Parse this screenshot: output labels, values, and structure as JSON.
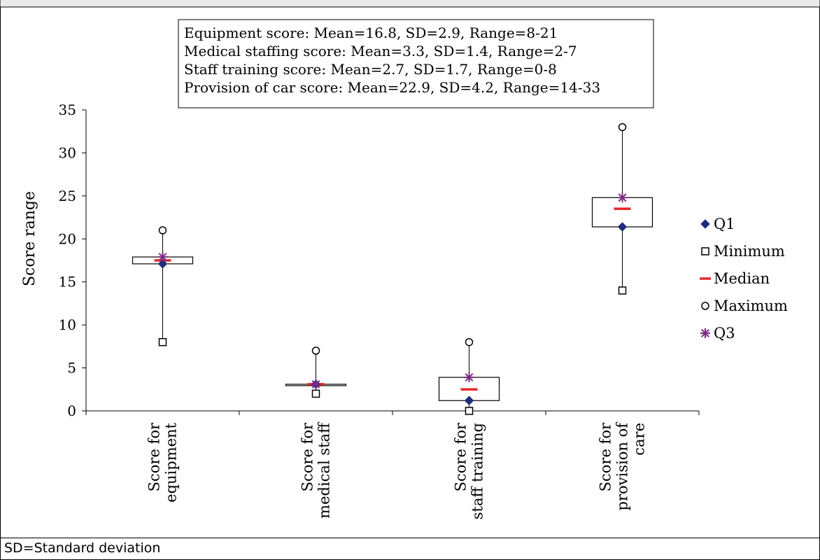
{
  "chart_data": {
    "type": "boxplot",
    "title": "",
    "xlabel": "",
    "ylabel": "Score range",
    "ylim": [
      0,
      35
    ],
    "yticks": [
      0,
      5,
      10,
      15,
      20,
      25,
      30,
      35
    ],
    "grid": false,
    "legend_position": "right",
    "categories": [
      [
        "Score for",
        "equipment"
      ],
      [
        "Score for",
        "medical staff"
      ],
      [
        "Score for",
        "staff training"
      ],
      [
        "Score for",
        "provision of",
        "care"
      ]
    ],
    "series": [
      {
        "name": "Q1",
        "marker": "diamond",
        "color": "#1f2d7a",
        "values": [
          17.1,
          3.1,
          1.2,
          21.4
        ]
      },
      {
        "name": "Minimum",
        "marker": "square-open",
        "color": "#000000",
        "values": [
          8,
          2,
          0,
          14
        ]
      },
      {
        "name": "Median",
        "marker": "dash",
        "color": "#e8282b",
        "values": [
          17.5,
          3.1,
          2.5,
          23.5
        ]
      },
      {
        "name": "Maximum",
        "marker": "circle-open",
        "color": "#000000",
        "values": [
          21,
          7,
          8,
          33
        ]
      },
      {
        "name": "Q3",
        "marker": "star",
        "color": "#7b2c83",
        "values": [
          17.9,
          3.1,
          3.9,
          24.8
        ]
      }
    ],
    "annotations": [
      "Equipment score: Mean=16.8, SD=2.9, Range=8-21",
      "Medical staffing score: Mean=3.3, SD=1.4, Range=2-7",
      "Staff training score: Mean=2.7, SD=1.7, Range=0-8",
      "Provision of car score: Mean=22.9, SD=4.2, Range=14-33"
    ]
  },
  "footnote": "SD=Standard deviation"
}
